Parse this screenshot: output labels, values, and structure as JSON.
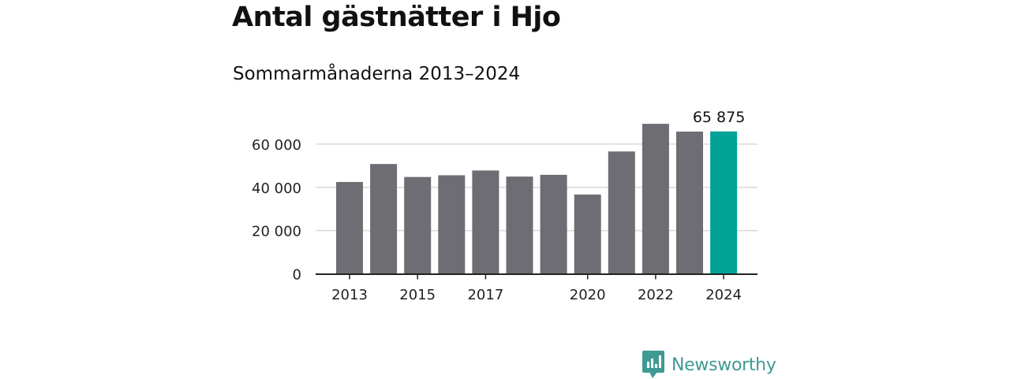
{
  "title": "Antal gästnätter i Hjo",
  "subtitle": "Sommarmånaderna 2013–2024",
  "chart_data": {
    "type": "bar",
    "categories": [
      "2013",
      "2014",
      "2015",
      "2016",
      "2017",
      "2018",
      "2019",
      "2020",
      "2021",
      "2022",
      "2023",
      "2024"
    ],
    "values": [
      42500,
      50800,
      44800,
      45600,
      47800,
      45000,
      45800,
      36700,
      56600,
      69400,
      65800,
      65875
    ],
    "x_tick_labels": [
      "2013",
      "2015",
      "2017",
      "2020",
      "2022",
      "2024"
    ],
    "y_ticks": [
      0,
      20000,
      40000,
      60000
    ],
    "y_tick_labels": [
      "0",
      "20 000",
      "40 000",
      "60 000"
    ],
    "ylim": [
      0,
      70000
    ],
    "grid": true,
    "highlight": {
      "category": "2024",
      "label": "65 875"
    },
    "colors": {
      "bar": "#6e6d73",
      "highlight": "#00a396",
      "grid": "#d9d9d9",
      "axis": "#222222"
    }
  },
  "brand": {
    "name": "Newsworthy",
    "icon": "bar-chart-speech-bubble-icon",
    "color": "#3f9a93"
  }
}
